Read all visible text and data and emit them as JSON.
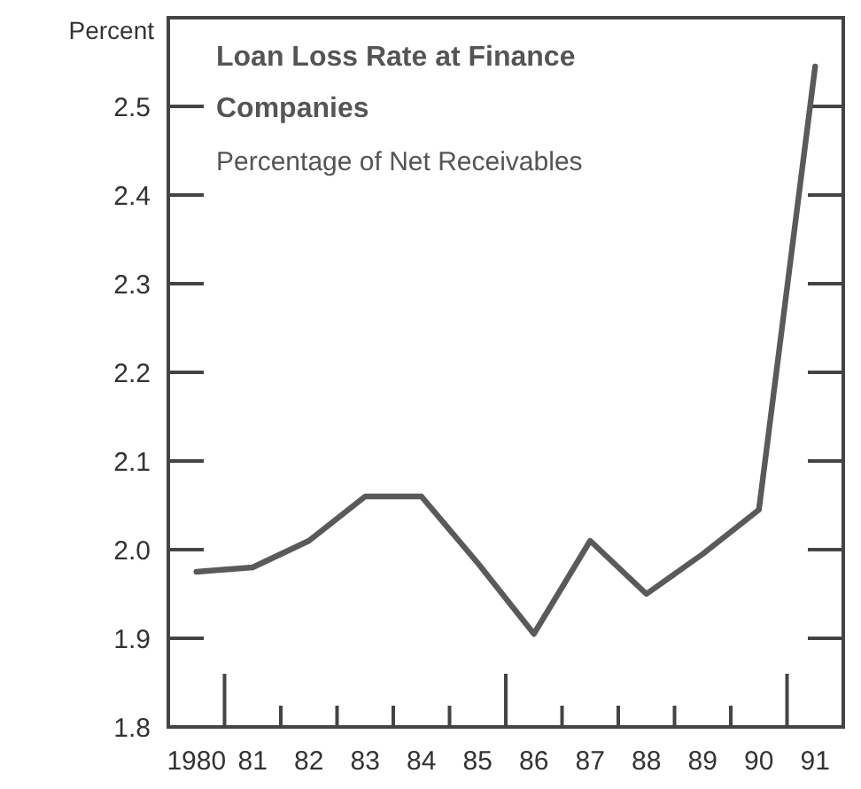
{
  "chart_data": {
    "type": "line",
    "title": "Loan Loss Rate at Finance Companies",
    "subtitle": "Percentage of Net Receivables",
    "ylabel": "Percent",
    "categories": [
      "1980",
      "81",
      "82",
      "83",
      "84",
      "85",
      "86",
      "87",
      "88",
      "89",
      "90",
      "91"
    ],
    "series": [
      {
        "color": "#5a5a5a",
        "values": [
          1.975,
          1.98,
          2.01,
          2.06,
          2.06,
          1.985,
          1.905,
          2.01,
          1.95,
          1.995,
          2.045,
          2.545
        ]
      }
    ],
    "ylim": [
      1.8,
      2.6
    ],
    "yticks": [
      {
        "value": 1.8,
        "label": "1.8"
      },
      {
        "value": 1.9,
        "label": "1.9"
      },
      {
        "value": 2,
        "label": "2.0"
      },
      {
        "value": 2.1,
        "label": "2.1"
      },
      {
        "value": 2.2,
        "label": "2.2"
      },
      {
        "value": 2.3,
        "label": "2.3"
      },
      {
        "value": 2.4,
        "label": "2.4"
      },
      {
        "value": 2.5,
        "label": "2.5"
      }
    ],
    "grid": false,
    "marker": "none",
    "line_style": "solid"
  }
}
